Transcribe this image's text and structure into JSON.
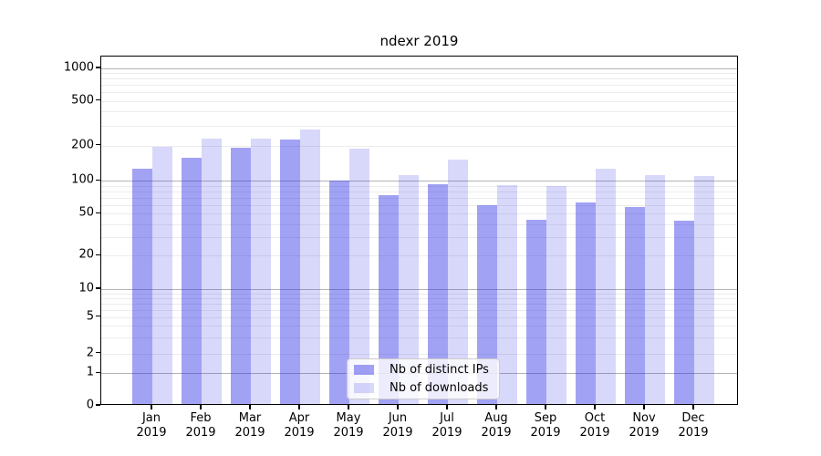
{
  "chart_data": {
    "type": "bar",
    "title": "ndexr 2019",
    "categories": [
      "Jan",
      "Feb",
      "Mar",
      "Apr",
      "May",
      "Jun",
      "Jul",
      "Aug",
      "Sep",
      "Oct",
      "Nov",
      "Dec"
    ],
    "year_label": "2019",
    "series": [
      {
        "name": "Nb of distinct IPs",
        "fill": "rgba(40,40,230,0.43)",
        "hex_on_white": "#a3a3f4",
        "values": [
          123,
          152,
          184,
          217,
          96,
          71,
          90,
          58,
          42,
          61,
          55,
          41
        ]
      },
      {
        "name": "Nb of downloads",
        "fill": "rgba(40,40,230,0.18)",
        "hex_on_white": "#d8d8fa",
        "values": [
          187,
          224,
          224,
          266,
          182,
          108,
          146,
          88,
          86,
          122,
          108,
          106
        ]
      }
    ],
    "yscale": "symlog",
    "yticks": [
      0,
      1,
      2,
      5,
      10,
      20,
      50,
      100,
      200,
      500,
      1000
    ],
    "ylim": [
      0,
      1000
    ],
    "xlabel": "",
    "ylabel": "",
    "grid": "both (major decades darker, minors faint)",
    "legend_position": "inside lower-center"
  },
  "colors": {
    "major_grid": "#b3b3b3",
    "minor_grid": "#ececec",
    "axis": "#000000",
    "legend_border": "#cccccc",
    "legend_bg": "rgba(255,255,255,0.8)",
    "background": "#ffffff"
  }
}
